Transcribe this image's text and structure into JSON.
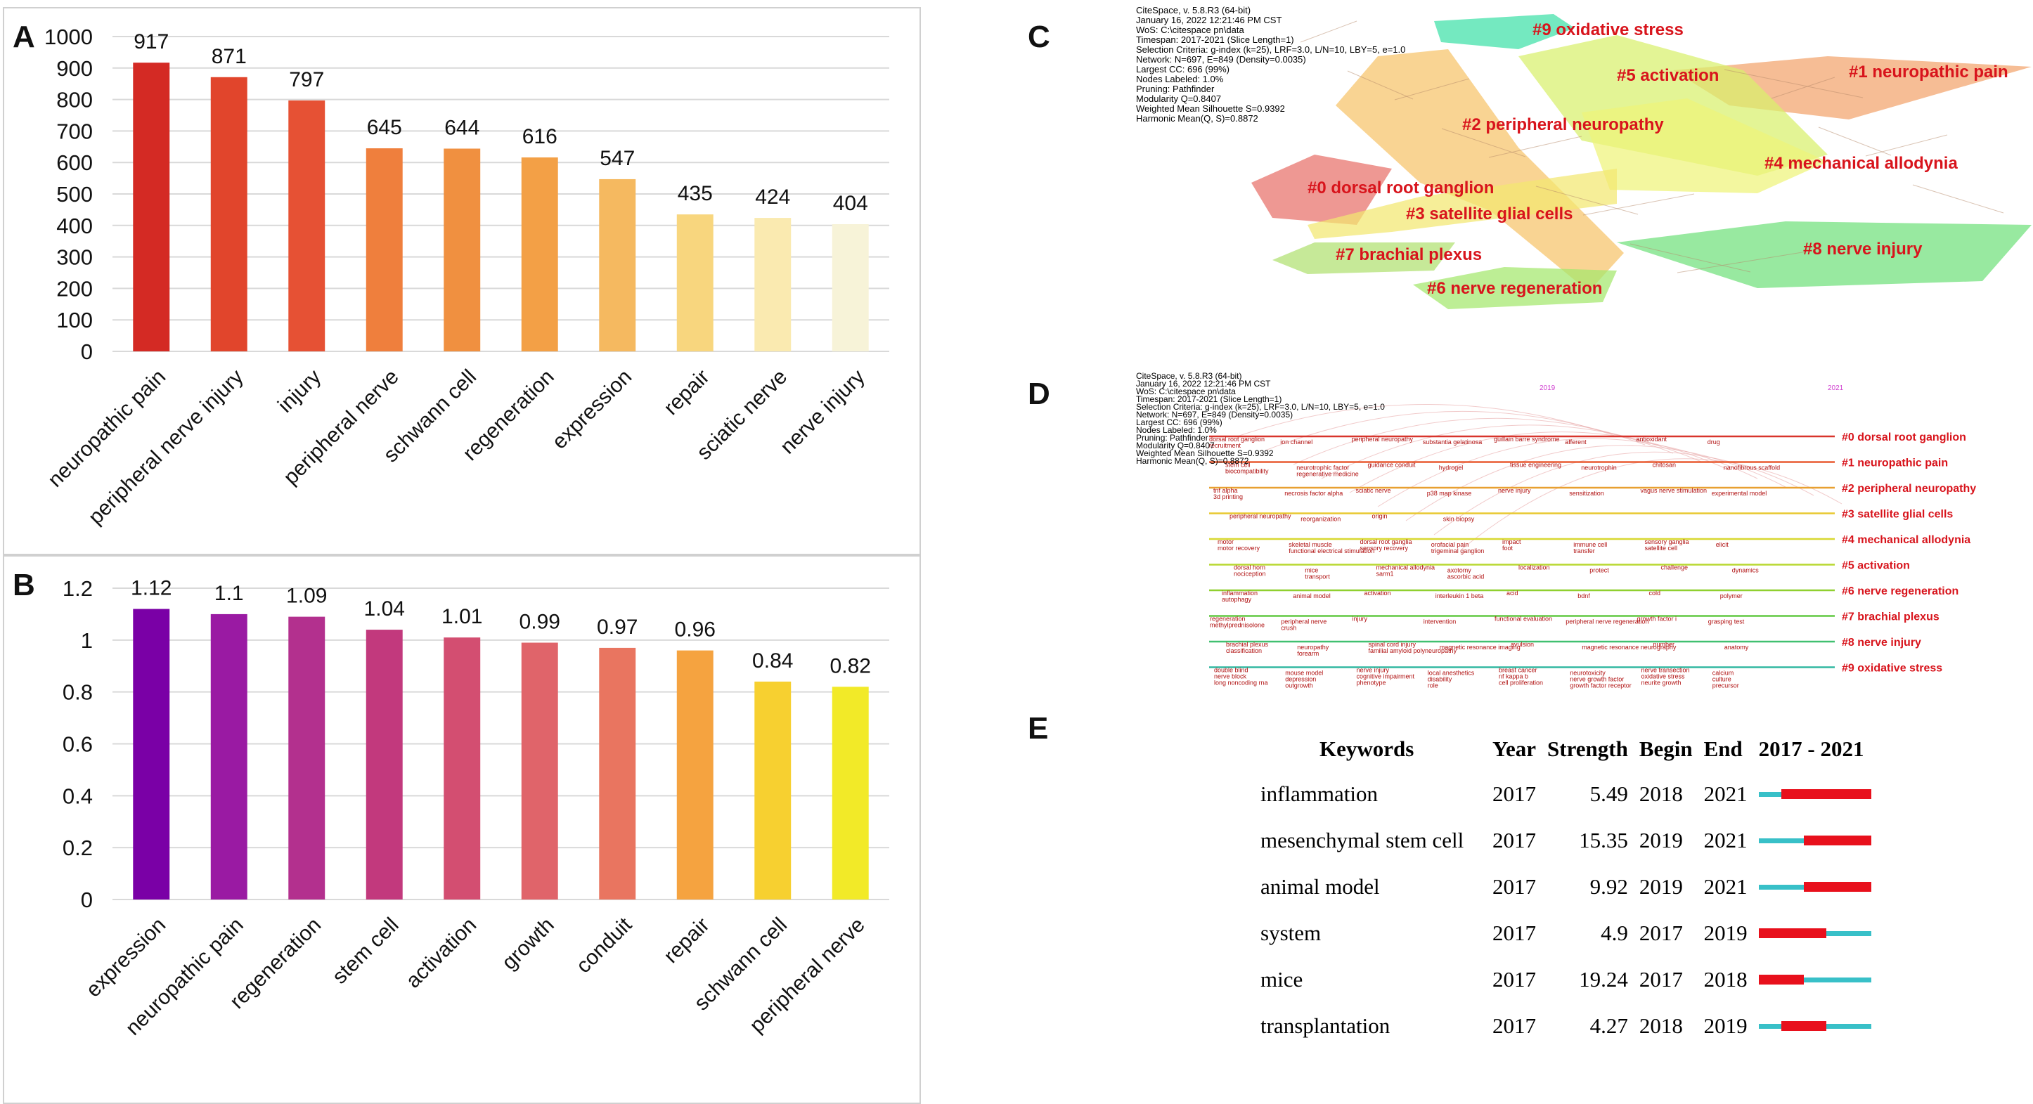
{
  "panels": {
    "a": "A",
    "b": "B",
    "c": "C",
    "d": "D",
    "e": "E"
  },
  "chart_data": [
    {
      "id": "A",
      "type": "bar",
      "title": "",
      "xlabel": "",
      "ylabel": "",
      "categories": [
        "neuropathic pain",
        "peripheral nerve injury",
        "injury",
        "peripheral nerve",
        "schwann cell",
        "regeneration",
        "expression",
        "repair",
        "sciatic nerve",
        "nerve injury"
      ],
      "values": [
        917,
        871,
        797,
        645,
        644,
        616,
        547,
        435,
        424,
        404
      ],
      "value_labels": [
        "917",
        "871",
        "797",
        "645",
        "644",
        "616",
        "547",
        "435",
        "424",
        "404"
      ],
      "yticks": [
        "0",
        "100",
        "200",
        "300",
        "400",
        "500",
        "600",
        "700",
        "800",
        "900",
        "1000"
      ],
      "ylim": [
        0,
        1000
      ],
      "colors": [
        "#d42a24",
        "#e1452c",
        "#e65134",
        "#ef7f3d",
        "#f09040",
        "#f3a046",
        "#f5b960",
        "#f8d67e",
        "#faeab0",
        "#f7f3d8"
      ]
    },
    {
      "id": "B",
      "type": "bar",
      "title": "",
      "xlabel": "",
      "ylabel": "",
      "categories": [
        "expression",
        "neuropathic pain",
        "regeneration",
        "stem cell",
        "activation",
        "growth",
        "conduit",
        "repair",
        "schwann cell",
        "peripheral nerve"
      ],
      "values": [
        1.12,
        1.1,
        1.09,
        1.04,
        1.01,
        0.99,
        0.97,
        0.96,
        0.84,
        0.82
      ],
      "value_labels": [
        "1.12",
        "1.1",
        "1.09",
        "1.04",
        "1.01",
        "0.99",
        "0.97",
        "0.96",
        "0.84",
        "0.82"
      ],
      "yticks": [
        "0",
        "0.2",
        "0.4",
        "0.6",
        "0.8",
        "1",
        "1.2"
      ],
      "ylim": [
        0,
        1.2
      ],
      "colors": [
        "#7a00a6",
        "#9a1aa3",
        "#b3308e",
        "#c2397d",
        "#d34e71",
        "#e0646a",
        "#e97560",
        "#f5a340",
        "#f7d030",
        "#f2ea28"
      ]
    }
  ],
  "cluster_map": {
    "meta": "CiteSpace, v. 5.8.R3 (64-bit)\nJanuary 16, 2022 12:21:46 PM CST\nWoS: C:\\citespace pn\\data\nTimespan: 2017-2021 (Slice Length=1)\nSelection Criteria: g-index (k=25), LRF=3.0, L/N=10, LBY=5, e=1.0\nNetwork: N=697, E=849 (Density=0.0035)\nLargest CC: 696 (99%)\nNodes Labeled: 1.0%\nPruning: Pathfinder\nModularity Q=0.8407\nWeighted Mean Silhouette S=0.9392\nHarmonic Mean(Q, S)=0.8872",
    "clusters": [
      {
        "label": "#9 oxidative stress",
        "color": "#3fe0a8"
      },
      {
        "label": "#1 neuropathic pain",
        "color": "#f3a46c"
      },
      {
        "label": "#5 activation",
        "color": "#d8f06c"
      },
      {
        "label": "#2 peripheral neuropathy",
        "color": "#f6c46a"
      },
      {
        "label": "#4 mechanical allodynia",
        "color": "#eef47a"
      },
      {
        "label": "#0 dorsal root ganglion",
        "color": "#e8706a"
      },
      {
        "label": "#3 satellite glial cells",
        "color": "#f2e870"
      },
      {
        "label": "#7 brachial plexus",
        "color": "#b0e070"
      },
      {
        "label": "#8 nerve injury",
        "color": "#70e07c"
      },
      {
        "label": "#6 nerve regeneration",
        "color": "#a4e86c"
      }
    ]
  },
  "timeline": {
    "meta": "CiteSpace, v. 5.8.R3 (64-bit)\nJanuary 16, 2022 12:21:46 PM CST\nWoS: C:\\citespace pn\\data\nTimespan: 2017-2021 (Slice Length=1)\nSelection Criteria: g-index (k=25), LRF=3.0, L/N=10, LBY=5, e=1.0\nNetwork: N=697, E=849 (Density=0.0035)\nLargest CC: 696 (99%)\nNodes Labeled: 1.0%\nPruning: Pathfinder\nModularity Q=0.8407\nWeighted Mean Silhouette S=0.9392\nHarmonic Mean(Q, S)=0.8872",
    "year_start": "2019",
    "year_end": "2021",
    "clusters": [
      {
        "label": "#0 dorsal root ganglion",
        "color": "#d8342c",
        "terms": [
          "dorsal root ganglion",
          "ion channel",
          "peripheral neuropathy",
          "substantia gelatinosa",
          "guillain barre syndrome",
          "afferent",
          "antioxidant",
          "drug",
          "recruitment"
        ]
      },
      {
        "label": "#1 neuropathic pain",
        "color": "#e85a30",
        "terms": [
          "stem cell",
          "neurotrophic factor",
          "guidance conduit",
          "hydrogel",
          "tissue engineering",
          "neurotrophin",
          "chitosan",
          "nanofibrous scaffold",
          "biocompatibility",
          "regenerative medicine"
        ]
      },
      {
        "label": "#2 peripheral neuropathy",
        "color": "#e8a030",
        "terms": [
          "tnf alpha",
          "necrosis factor alpha",
          "sciatic nerve",
          "p38 map kinase",
          "nerve injury",
          "sensitization",
          "vagus nerve stimulation",
          "experimental model",
          "3d printing"
        ]
      },
      {
        "label": "#3 satellite glial cells",
        "color": "#e8c830",
        "terms": [
          "peripheral neuropathy",
          "reorganization",
          "origin",
          "skin biopsy"
        ]
      },
      {
        "label": "#4 mechanical allodynia",
        "color": "#d8d830",
        "terms": [
          "motor",
          "skeletal muscle",
          "dorsal root ganglia",
          "orofacial pain",
          "impact",
          "immune cell",
          "sensory ganglia",
          "elicit",
          "motor recovery",
          "functional electrical stimulation",
          "sensory recovery",
          "trigeminal ganglion",
          "foot",
          "transfer",
          "satellite cell"
        ]
      },
      {
        "label": "#5 activation",
        "color": "#b8d830",
        "terms": [
          "dorsal horn",
          "mice",
          "mechanical allodynia",
          "axotomy",
          "localization",
          "protect",
          "challenge",
          "dynamics",
          "nociception",
          "transport",
          "sarm1",
          "ascorbic acid"
        ]
      },
      {
        "label": "#6 nerve regeneration",
        "color": "#90d030",
        "terms": [
          "inflammation",
          "animal model",
          "activation",
          "interleukin 1 beta",
          "acid",
          "bdnf",
          "cold",
          "polymer",
          "autophagy"
        ]
      },
      {
        "label": "#7 brachial plexus",
        "color": "#60c840",
        "terms": [
          "regeneration",
          "peripheral nerve",
          "injury",
          "intervention",
          "functional evaluation",
          "peripheral nerve regeneration",
          "growth factor i",
          "grasping test",
          "methylprednisolone",
          "crush"
        ]
      },
      {
        "label": "#8 nerve injury",
        "color": "#40c070",
        "terms": [
          "brachial plexus",
          "neuropathy",
          "spinal cord injury",
          "magnetic resonance imaging",
          "avulsion",
          "magnetic resonance neurography",
          "number",
          "anatomy",
          "classification",
          "forearm",
          "familial amyloid polyneuropathy"
        ]
      },
      {
        "label": "#9 oxidative stress",
        "color": "#30b8a0",
        "terms": [
          "double blind",
          "mouse model",
          "nerve injury",
          "local anesthetics",
          "breast cancer",
          "neurotoxicity",
          "nerve transection",
          "calcium",
          "nerve block",
          "depression",
          "cognitive impairment",
          "disability",
          "nf kappa b",
          "nerve growth factor",
          "oxidative stress",
          "culture",
          "long noncoding rna",
          "outgrowth",
          "phenotype",
          "role",
          "cell proliferation",
          "growth factor receptor",
          "neurite growth",
          "precursor"
        ]
      }
    ]
  },
  "burst_table": {
    "headers": {
      "keywords": "Keywords",
      "year": "Year",
      "strength": "Strength",
      "begin": "Begin",
      "end": "End",
      "range": "2017 - 2021"
    },
    "colors": {
      "burst": "#e8101c",
      "normal": "#38c0c8"
    },
    "rows": [
      {
        "keyword": "inflammation",
        "year": "2017",
        "strength": "5.49",
        "begin": "2018",
        "end": "2021",
        "segments": [
          0,
          1,
          1,
          1,
          1
        ]
      },
      {
        "keyword": "mesenchymal stem cell",
        "year": "2017",
        "strength": "15.35",
        "begin": "2019",
        "end": "2021",
        "segments": [
          0,
          0,
          1,
          1,
          1
        ]
      },
      {
        "keyword": "animal model",
        "year": "2017",
        "strength": "9.92",
        "begin": "2019",
        "end": "2021",
        "segments": [
          0,
          0,
          1,
          1,
          1
        ]
      },
      {
        "keyword": "system",
        "year": "2017",
        "strength": "4.9",
        "begin": "2017",
        "end": "2019",
        "segments": [
          1,
          1,
          1,
          0,
          0
        ]
      },
      {
        "keyword": "mice",
        "year": "2017",
        "strength": "19.24",
        "begin": "2017",
        "end": "2018",
        "segments": [
          1,
          1,
          0,
          0,
          0
        ]
      },
      {
        "keyword": "transplantation",
        "year": "2017",
        "strength": "4.27",
        "begin": "2018",
        "end": "2019",
        "segments": [
          0,
          1,
          1,
          0,
          0
        ]
      }
    ]
  }
}
